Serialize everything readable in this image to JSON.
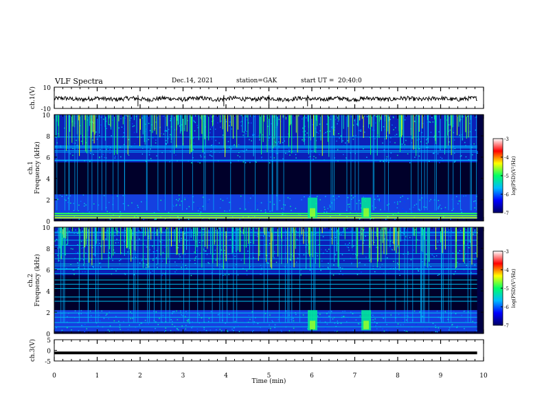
{
  "header": {
    "title": "VLF Spectra",
    "date": "Dec.14, 2021",
    "station": "station=GAK",
    "start_label": "start UT =",
    "start_time": "20:40:0"
  },
  "chart_data": [
    {
      "type": "line",
      "panel": "ch1-waveform",
      "ylabel": "ch.1(V)",
      "ylim": [
        -10,
        10
      ],
      "yticks": [
        "10",
        "-10"
      ],
      "xlim": [
        0,
        10
      ],
      "description_values": {
        "baseline": -1,
        "amplitude": 2
      }
    },
    {
      "type": "heatmap",
      "panel": "ch1-spectrogram",
      "ylabel": "Frequency (kHz)",
      "channel_label": "ch.1",
      "ylim": [
        0,
        10
      ],
      "yticks": [
        "0",
        "2",
        "4",
        "6",
        "8",
        "10"
      ],
      "xlim": [
        0,
        10
      ],
      "colorbar": {
        "label": "log(PSD)(V²/Hz)",
        "range": [
          -7,
          -3
        ],
        "ticks": [
          "-3",
          "-4",
          "-5",
          "-6",
          "-7"
        ]
      },
      "features": {
        "high_band_khz": [
          5.5,
          10
        ],
        "quiet_band_khz": [
          2.5,
          5.5
        ],
        "low_band_khz": [
          0.2,
          2.5
        ],
        "strong_lines_khz": [
          0.3,
          0.5,
          0.7
        ],
        "bursts_min": [
          6.0,
          7.25
        ]
      }
    },
    {
      "type": "heatmap",
      "panel": "ch2-spectrogram",
      "ylabel": "Frequency (kHz)",
      "channel_label": "ch.2",
      "ylim": [
        0,
        10
      ],
      "yticks": [
        "0",
        "2",
        "4",
        "6",
        "8",
        "10"
      ],
      "xlim": [
        0,
        10
      ],
      "colorbar": {
        "label": "log(PSD)(V²/Hz)",
        "range": [
          -7,
          -3
        ],
        "ticks": [
          "-3",
          "-4",
          "-5",
          "-6",
          "-7"
        ]
      },
      "features": {
        "high_band_khz": [
          5.5,
          10
        ],
        "quiet_band_khz": [
          2.2,
          5.2
        ],
        "low_band_khz": [
          0.2,
          2.2
        ],
        "lines_khz": [
          0.6,
          1.0,
          1.5,
          1.9,
          3.0,
          3.4,
          4.2,
          4.6,
          5.0,
          5.6,
          6.0,
          6.5,
          7.0
        ],
        "bursts_min": [
          6.0,
          7.25
        ]
      }
    },
    {
      "type": "line",
      "panel": "ch3-waveform",
      "ylabel": "ch.3(V)",
      "ylim": [
        -5,
        5
      ],
      "yticks": [
        "5",
        "0",
        "-5"
      ],
      "xlim": [
        0,
        10
      ],
      "constant_value": -1.2
    }
  ],
  "xaxis": {
    "label": "Time (min)",
    "ticks": [
      "0",
      "1",
      "2",
      "3",
      "4",
      "5",
      "6",
      "7",
      "8",
      "9",
      "10"
    ]
  },
  "colors": {
    "cmap": [
      "#000066",
      "#0000ff",
      "#00bbff",
      "#00ff66",
      "#ffff00",
      "#ff0000",
      "#ffffff"
    ]
  }
}
